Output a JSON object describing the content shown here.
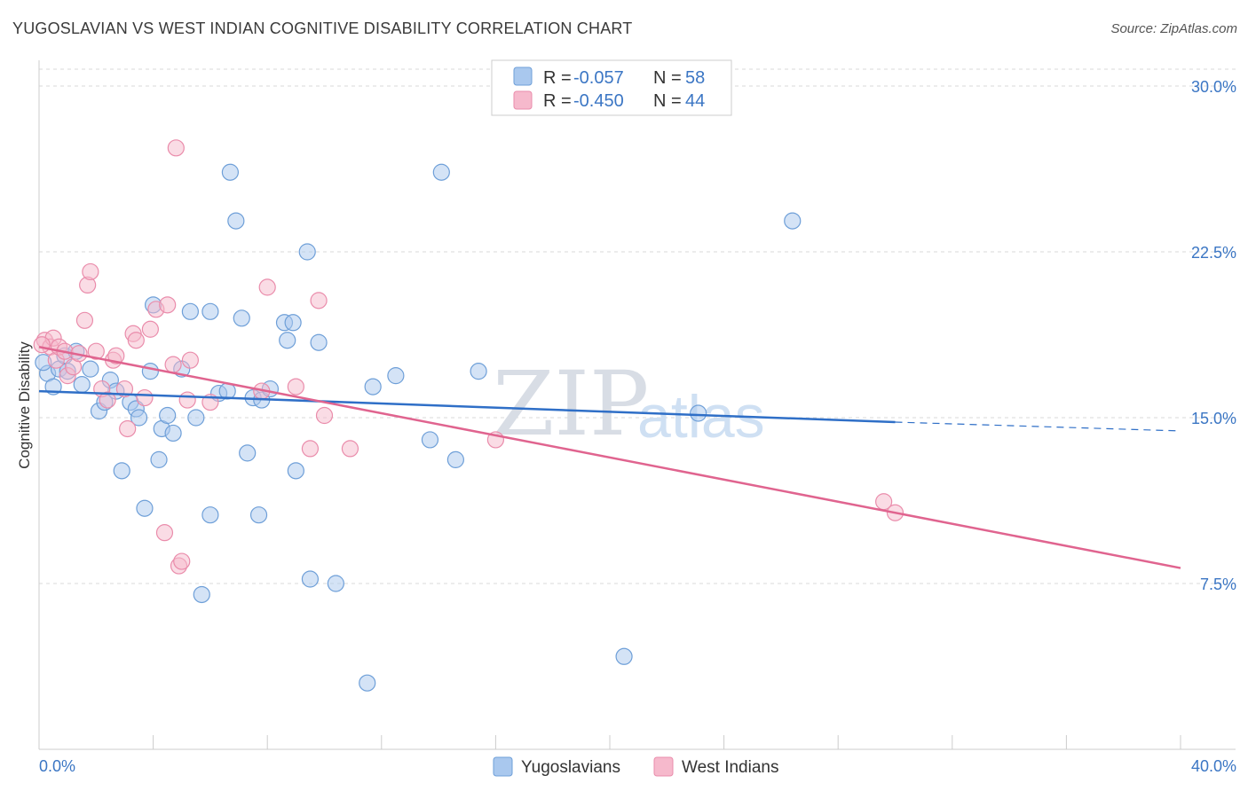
{
  "title": "YUGOSLAVIAN VS WEST INDIAN COGNITIVE DISABILITY CORRELATION CHART",
  "source": "Source: ZipAtlas.com",
  "watermark": {
    "zip": "ZIP",
    "atlas": "atlas"
  },
  "colors": {
    "blue_fill": "#a9c8ee",
    "blue_stroke": "#6e9fd8",
    "blue_line": "#2f6fc7",
    "pink_fill": "#f6b9cc",
    "pink_stroke": "#ea8cab",
    "pink_line": "#e0648f",
    "tick_text": "#3b76c4",
    "grid": "#d8d8d8"
  },
  "legend": {
    "rows": [
      {
        "r_label": "R = ",
        "r_value": "-0.057",
        "n_label": "N = ",
        "n_value": "58"
      },
      {
        "r_label": "R = ",
        "r_value": "-0.450",
        "n_label": "N = ",
        "n_value": "44"
      }
    ]
  },
  "chart_data": {
    "type": "scatter",
    "title": "YUGOSLAVIAN VS WEST INDIAN COGNITIVE DISABILITY CORRELATION CHART",
    "xlabel": "",
    "ylabel": "Cognitive Disability",
    "xlim": [
      0,
      40
    ],
    "ylim": [
      0,
      31.5
    ],
    "x_tick_labels": [
      "0.0%",
      "40.0%"
    ],
    "y_ticks": [
      7.5,
      15.0,
      22.5,
      30.0
    ],
    "y_tick_labels": [
      "7.5%",
      "15.0%",
      "22.5%",
      "30.0%"
    ],
    "grid": "horizontal dashed",
    "legend_position": "top-center",
    "series": [
      {
        "name": "Yugoslavians",
        "points": [
          [
            0.3,
            17.0
          ],
          [
            0.5,
            16.4
          ],
          [
            0.7,
            17.2
          ],
          [
            0.9,
            17.8
          ],
          [
            1.0,
            17.1
          ],
          [
            1.3,
            18.0
          ],
          [
            1.5,
            16.5
          ],
          [
            1.8,
            17.2
          ],
          [
            2.1,
            15.3
          ],
          [
            2.3,
            15.7
          ],
          [
            2.5,
            16.7
          ],
          [
            2.7,
            16.2
          ],
          [
            2.9,
            12.6
          ],
          [
            3.2,
            15.7
          ],
          [
            3.4,
            15.4
          ],
          [
            3.5,
            15.0
          ],
          [
            3.7,
            10.9
          ],
          [
            3.9,
            17.1
          ],
          [
            4.0,
            20.1
          ],
          [
            4.2,
            13.1
          ],
          [
            4.3,
            14.5
          ],
          [
            4.5,
            15.1
          ],
          [
            4.7,
            14.3
          ],
          [
            5.0,
            17.2
          ],
          [
            5.3,
            19.8
          ],
          [
            5.5,
            15.0
          ],
          [
            5.7,
            7.0
          ],
          [
            6.0,
            19.8
          ],
          [
            6.0,
            10.6
          ],
          [
            6.3,
            16.1
          ],
          [
            6.6,
            16.2
          ],
          [
            6.7,
            26.1
          ],
          [
            6.9,
            23.9
          ],
          [
            7.1,
            19.5
          ],
          [
            7.3,
            13.4
          ],
          [
            7.5,
            15.9
          ],
          [
            7.7,
            10.6
          ],
          [
            7.8,
            15.8
          ],
          [
            8.1,
            16.3
          ],
          [
            8.6,
            19.3
          ],
          [
            8.7,
            18.5
          ],
          [
            8.9,
            19.3
          ],
          [
            9.0,
            12.6
          ],
          [
            9.4,
            22.5
          ],
          [
            9.5,
            7.7
          ],
          [
            9.8,
            18.4
          ],
          [
            10.4,
            7.5
          ],
          [
            11.5,
            3.0
          ],
          [
            11.7,
            16.4
          ],
          [
            12.5,
            16.9
          ],
          [
            13.7,
            14.0
          ],
          [
            14.1,
            26.1
          ],
          [
            14.6,
            13.1
          ],
          [
            15.4,
            17.1
          ],
          [
            20.5,
            4.2
          ],
          [
            23.1,
            15.2
          ],
          [
            26.4,
            23.9
          ],
          [
            0.15,
            17.5
          ]
        ],
        "trend": {
          "x": [
            0,
            30
          ],
          "y": [
            16.2,
            14.8
          ],
          "dashed_to": [
            40,
            14.4
          ]
        }
      },
      {
        "name": "West Indians",
        "points": [
          [
            0.2,
            18.5
          ],
          [
            0.4,
            18.2
          ],
          [
            0.5,
            18.6
          ],
          [
            0.6,
            17.6
          ],
          [
            0.7,
            18.2
          ],
          [
            0.9,
            18.0
          ],
          [
            1.0,
            16.9
          ],
          [
            1.2,
            17.3
          ],
          [
            1.4,
            17.9
          ],
          [
            1.6,
            19.4
          ],
          [
            1.7,
            21.0
          ],
          [
            1.8,
            21.6
          ],
          [
            2.0,
            18.0
          ],
          [
            2.2,
            16.3
          ],
          [
            2.4,
            15.8
          ],
          [
            2.6,
            17.6
          ],
          [
            2.7,
            17.8
          ],
          [
            3.0,
            16.3
          ],
          [
            3.1,
            14.5
          ],
          [
            3.3,
            18.8
          ],
          [
            3.4,
            18.5
          ],
          [
            3.7,
            15.9
          ],
          [
            3.9,
            19.0
          ],
          [
            4.1,
            19.9
          ],
          [
            4.4,
            9.8
          ],
          [
            4.5,
            20.1
          ],
          [
            4.7,
            17.4
          ],
          [
            4.8,
            27.2
          ],
          [
            4.9,
            8.3
          ],
          [
            5.0,
            8.5
          ],
          [
            5.2,
            15.8
          ],
          [
            5.3,
            17.6
          ],
          [
            6.0,
            15.7
          ],
          [
            7.8,
            16.2
          ],
          [
            8.0,
            20.9
          ],
          [
            9.0,
            16.4
          ],
          [
            9.5,
            13.6
          ],
          [
            9.8,
            20.3
          ],
          [
            10.0,
            15.1
          ],
          [
            10.9,
            13.6
          ],
          [
            16.0,
            14.0
          ],
          [
            29.6,
            11.2
          ],
          [
            30.0,
            10.7
          ],
          [
            0.1,
            18.3
          ]
        ],
        "trend": {
          "x": [
            0,
            40
          ],
          "y": [
            18.2,
            8.2
          ]
        }
      }
    ]
  }
}
